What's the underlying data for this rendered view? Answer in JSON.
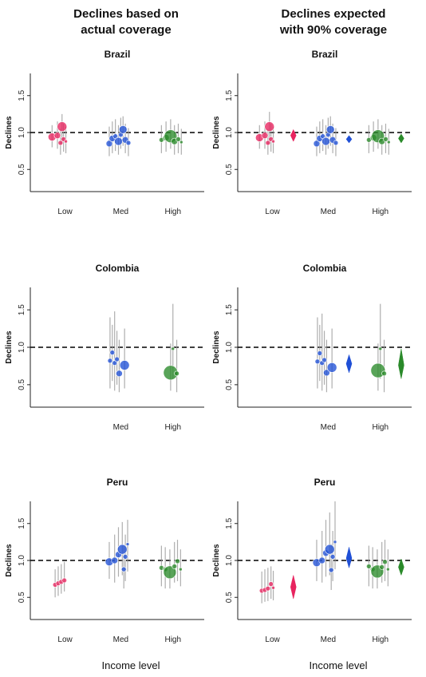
{
  "column_titles": {
    "left": [
      "Declines based on",
      "actual coverage"
    ],
    "right": [
      "Declines expected",
      "with 90% coverage"
    ]
  },
  "x_axis_title": "Income level",
  "colors": {
    "Low": "#e8245f",
    "Med": "#1f4fd6",
    "High": "#2a8a2a",
    "ci": "#9a9a9a",
    "ref_line": "#000000"
  },
  "chart_data": [
    {
      "type": "scatter",
      "title": "Brazil",
      "column": "actual",
      "ylabel": "Declines",
      "ylim": [
        0.2,
        1.8
      ],
      "yticks": [
        0.5,
        1.0,
        1.5
      ],
      "reference_line": 1.0,
      "categories": [
        "Low",
        "Med",
        "High"
      ],
      "tick_labels": [
        "Low",
        "Med",
        "High"
      ],
      "series": [
        {
          "group": "Low",
          "points": [
            {
              "o": -0.34,
              "v": 0.94,
              "r": 5,
              "lo": 0.8,
              "hi": 1.1
            },
            {
              "o": -0.2,
              "v": 0.96,
              "r": 4,
              "lo": 0.78,
              "hi": 1.15
            },
            {
              "o": -0.08,
              "v": 1.08,
              "r": 6,
              "lo": 0.85,
              "hi": 1.25
            },
            {
              "o": -0.12,
              "v": 0.86,
              "r": 3,
              "lo": 0.7,
              "hi": 1.05
            },
            {
              "o": -0.04,
              "v": 0.91,
              "r": 3,
              "lo": 0.74,
              "hi": 1.12
            },
            {
              "o": 0.02,
              "v": 0.88,
              "r": 2,
              "lo": 0.72,
              "hi": 1.08
            }
          ]
        },
        {
          "group": "Med",
          "points": [
            {
              "o": -0.3,
              "v": 0.85,
              "r": 4,
              "lo": 0.68,
              "hi": 1.08
            },
            {
              "o": -0.22,
              "v": 0.92,
              "r": 4,
              "lo": 0.72,
              "hi": 1.15
            },
            {
              "o": -0.14,
              "v": 0.95,
              "r": 3,
              "lo": 0.75,
              "hi": 1.18
            },
            {
              "o": -0.06,
              "v": 0.88,
              "r": 5,
              "lo": 0.7,
              "hi": 1.1
            },
            {
              "o": 0.0,
              "v": 0.97,
              "r": 3,
              "lo": 0.78,
              "hi": 1.2
            },
            {
              "o": 0.06,
              "v": 1.04,
              "r": 5,
              "lo": 0.82,
              "hi": 1.22
            },
            {
              "o": 0.12,
              "v": 0.9,
              "r": 4,
              "lo": 0.72,
              "hi": 1.12
            },
            {
              "o": 0.2,
              "v": 0.86,
              "r": 3,
              "lo": 0.68,
              "hi": 1.06
            }
          ]
        },
        {
          "group": "High",
          "points": [
            {
              "o": -0.3,
              "v": 0.9,
              "r": 3,
              "lo": 0.72,
              "hi": 1.1
            },
            {
              "o": -0.18,
              "v": 0.93,
              "r": 4,
              "lo": 0.74,
              "hi": 1.15
            },
            {
              "o": -0.06,
              "v": 0.95,
              "r": 8,
              "lo": 0.78,
              "hi": 1.18
            },
            {
              "o": 0.04,
              "v": 0.88,
              "r": 4,
              "lo": 0.7,
              "hi": 1.1
            },
            {
              "o": 0.14,
              "v": 0.91,
              "r": 3,
              "lo": 0.72,
              "hi": 1.12
            },
            {
              "o": 0.22,
              "v": 0.87,
              "r": 2,
              "lo": 0.7,
              "hi": 1.05
            }
          ]
        }
      ],
      "diamonds": []
    },
    {
      "type": "scatter",
      "title": "Brazil",
      "column": "expected",
      "ylabel": "Declines",
      "ylim": [
        0.2,
        1.8
      ],
      "yticks": [
        0.5,
        1.0,
        1.5
      ],
      "reference_line": 1.0,
      "categories": [
        "Low",
        "Med",
        "High"
      ],
      "tick_labels": [
        "Low",
        "Med",
        "High"
      ],
      "series": [
        {
          "group": "Low",
          "points": [
            {
              "o": -0.34,
              "v": 0.93,
              "r": 5,
              "lo": 0.78,
              "hi": 1.1
            },
            {
              "o": -0.2,
              "v": 0.96,
              "r": 4,
              "lo": 0.78,
              "hi": 1.15
            },
            {
              "o": -0.08,
              "v": 1.08,
              "r": 6,
              "lo": 0.85,
              "hi": 1.28
            },
            {
              "o": -0.12,
              "v": 0.86,
              "r": 3,
              "lo": 0.7,
              "hi": 1.05
            },
            {
              "o": -0.04,
              "v": 0.91,
              "r": 3,
              "lo": 0.74,
              "hi": 1.12
            },
            {
              "o": 0.02,
              "v": 0.88,
              "r": 2,
              "lo": 0.72,
              "hi": 1.08
            }
          ]
        },
        {
          "group": "Med",
          "points": [
            {
              "o": -0.3,
              "v": 0.85,
              "r": 4,
              "lo": 0.68,
              "hi": 1.08
            },
            {
              "o": -0.22,
              "v": 0.92,
              "r": 4,
              "lo": 0.72,
              "hi": 1.15
            },
            {
              "o": -0.14,
              "v": 0.95,
              "r": 3,
              "lo": 0.75,
              "hi": 1.18
            },
            {
              "o": -0.06,
              "v": 0.88,
              "r": 5,
              "lo": 0.7,
              "hi": 1.1
            },
            {
              "o": 0.0,
              "v": 0.97,
              "r": 3,
              "lo": 0.78,
              "hi": 1.2
            },
            {
              "o": 0.06,
              "v": 1.04,
              "r": 5,
              "lo": 0.82,
              "hi": 1.22
            },
            {
              "o": 0.12,
              "v": 0.9,
              "r": 4,
              "lo": 0.72,
              "hi": 1.12
            },
            {
              "o": 0.2,
              "v": 0.86,
              "r": 3,
              "lo": 0.68,
              "hi": 1.06
            }
          ]
        },
        {
          "group": "High",
          "points": [
            {
              "o": -0.3,
              "v": 0.9,
              "r": 3,
              "lo": 0.72,
              "hi": 1.1
            },
            {
              "o": -0.18,
              "v": 0.93,
              "r": 4,
              "lo": 0.74,
              "hi": 1.15
            },
            {
              "o": -0.06,
              "v": 0.95,
              "r": 8,
              "lo": 0.78,
              "hi": 1.18
            },
            {
              "o": 0.04,
              "v": 0.88,
              "r": 4,
              "lo": 0.7,
              "hi": 1.1
            },
            {
              "o": 0.14,
              "v": 0.91,
              "r": 3,
              "lo": 0.72,
              "hi": 1.12
            },
            {
              "o": 0.22,
              "v": 0.87,
              "r": 2,
              "lo": 0.7,
              "hi": 1.05
            }
          ]
        }
      ],
      "diamonds": [
        {
          "group": "Low",
          "v": 0.96,
          "lo": 0.88,
          "hi": 1.04
        },
        {
          "group": "Med",
          "v": 0.91,
          "lo": 0.86,
          "hi": 0.96
        },
        {
          "group": "High",
          "v": 0.92,
          "lo": 0.86,
          "hi": 0.98
        }
      ]
    },
    {
      "type": "scatter",
      "title": "Colombia",
      "column": "actual",
      "ylabel": "Declines",
      "ylim": [
        0.2,
        1.8
      ],
      "yticks": [
        0.5,
        1.0,
        1.5
      ],
      "reference_line": 1.0,
      "categories": [
        "Low",
        "Med",
        "High"
      ],
      "tick_labels": [
        "",
        "Med",
        "High"
      ],
      "series": [
        {
          "group": "Med",
          "points": [
            {
              "o": -0.28,
              "v": 0.82,
              "r": 3,
              "lo": 0.45,
              "hi": 1.4
            },
            {
              "o": -0.22,
              "v": 0.93,
              "r": 3,
              "lo": 0.55,
              "hi": 1.3
            },
            {
              "o": -0.16,
              "v": 0.79,
              "r": 3,
              "lo": 0.42,
              "hi": 1.48
            },
            {
              "o": -0.1,
              "v": 0.84,
              "r": 3,
              "lo": 0.5,
              "hi": 1.22
            },
            {
              "o": -0.04,
              "v": 0.65,
              "r": 4,
              "lo": 0.4,
              "hi": 1.1
            },
            {
              "o": 0.1,
              "v": 0.76,
              "r": 6,
              "lo": 0.45,
              "hi": 1.25
            }
          ]
        },
        {
          "group": "High",
          "points": [
            {
              "o": -0.06,
              "v": 0.66,
              "r": 9,
              "lo": 0.42,
              "hi": 1.05
            },
            {
              "o": 0.0,
              "v": 0.98,
              "r": 2,
              "lo": 0.58,
              "hi": 1.58
            },
            {
              "o": 0.1,
              "v": 0.65,
              "r": 3,
              "lo": 0.4,
              "hi": 1.1
            }
          ]
        }
      ],
      "diamonds": []
    },
    {
      "type": "scatter",
      "title": "Colombia",
      "column": "expected",
      "ylabel": "Declines",
      "ylim": [
        0.2,
        1.8
      ],
      "yticks": [
        0.5,
        1.0,
        1.5
      ],
      "reference_line": 1.0,
      "categories": [
        "Low",
        "Med",
        "High"
      ],
      "tick_labels": [
        "",
        "Med",
        "High"
      ],
      "series": [
        {
          "group": "Med",
          "points": [
            {
              "o": -0.28,
              "v": 0.81,
              "r": 3,
              "lo": 0.45,
              "hi": 1.4
            },
            {
              "o": -0.22,
              "v": 0.92,
              "r": 3,
              "lo": 0.55,
              "hi": 1.3
            },
            {
              "o": -0.16,
              "v": 0.79,
              "r": 3,
              "lo": 0.42,
              "hi": 1.45
            },
            {
              "o": -0.1,
              "v": 0.83,
              "r": 3,
              "lo": 0.5,
              "hi": 1.22
            },
            {
              "o": -0.04,
              "v": 0.66,
              "r": 4,
              "lo": 0.4,
              "hi": 1.1
            },
            {
              "o": 0.1,
              "v": 0.73,
              "r": 6,
              "lo": 0.45,
              "hi": 1.25
            }
          ]
        },
        {
          "group": "High",
          "points": [
            {
              "o": -0.06,
              "v": 0.69,
              "r": 9,
              "lo": 0.42,
              "hi": 1.05
            },
            {
              "o": 0.0,
              "v": 0.98,
              "r": 2,
              "lo": 0.58,
              "hi": 1.58
            },
            {
              "o": 0.1,
              "v": 0.65,
              "r": 3,
              "lo": 0.4,
              "hi": 1.1
            }
          ]
        }
      ],
      "diamonds": [
        {
          "group": "Med",
          "v": 0.78,
          "lo": 0.66,
          "hi": 0.9
        },
        {
          "group": "High",
          "v": 0.76,
          "lo": 0.58,
          "hi": 0.98
        }
      ]
    },
    {
      "type": "scatter",
      "title": "Peru",
      "column": "actual",
      "ylabel": "Declines",
      "ylim": [
        0.2,
        1.8
      ],
      "yticks": [
        0.5,
        1.0,
        1.5
      ],
      "reference_line": 1.0,
      "categories": [
        "Low",
        "Med",
        "High"
      ],
      "tick_labels": [
        "Low",
        "Med",
        "High"
      ],
      "series": [
        {
          "group": "Low",
          "points": [
            {
              "o": -0.26,
              "v": 0.67,
              "r": 3,
              "lo": 0.5,
              "hi": 0.88
            },
            {
              "o": -0.18,
              "v": 0.69,
              "r": 3,
              "lo": 0.52,
              "hi": 0.92
            },
            {
              "o": -0.1,
              "v": 0.71,
              "r": 3,
              "lo": 0.55,
              "hi": 0.95
            },
            {
              "o": -0.02,
              "v": 0.73,
              "r": 3,
              "lo": 0.58,
              "hi": 0.98
            }
          ]
        },
        {
          "group": "Med",
          "points": [
            {
              "o": -0.3,
              "v": 0.98,
              "r": 5,
              "lo": 0.75,
              "hi": 1.25
            },
            {
              "o": -0.16,
              "v": 1.0,
              "r": 4,
              "lo": 0.7,
              "hi": 1.35
            },
            {
              "o": -0.06,
              "v": 1.08,
              "r": 4,
              "lo": 0.78,
              "hi": 1.45
            },
            {
              "o": 0.04,
              "v": 1.15,
              "r": 6,
              "lo": 0.8,
              "hi": 1.52
            },
            {
              "o": 0.08,
              "v": 0.88,
              "r": 3,
              "lo": 0.62,
              "hi": 1.2
            },
            {
              "o": 0.18,
              "v": 1.22,
              "r": 2,
              "lo": 0.85,
              "hi": 1.55
            },
            {
              "o": 0.12,
              "v": 1.05,
              "r": 3,
              "lo": 0.72,
              "hi": 1.35
            }
          ]
        },
        {
          "group": "High",
          "points": [
            {
              "o": -0.3,
              "v": 0.9,
              "r": 3,
              "lo": 0.65,
              "hi": 1.2
            },
            {
              "o": -0.2,
              "v": 0.88,
              "r": 3,
              "lo": 0.62,
              "hi": 1.18
            },
            {
              "o": -0.08,
              "v": 0.84,
              "r": 8,
              "lo": 0.62,
              "hi": 1.15
            },
            {
              "o": 0.04,
              "v": 0.92,
              "r": 3,
              "lo": 0.7,
              "hi": 1.25
            },
            {
              "o": 0.12,
              "v": 0.99,
              "r": 3,
              "lo": 0.72,
              "hi": 1.28
            },
            {
              "o": 0.2,
              "v": 0.88,
              "r": 2,
              "lo": 0.65,
              "hi": 1.15
            }
          ]
        }
      ],
      "diamonds": []
    },
    {
      "type": "scatter",
      "title": "Peru",
      "column": "expected",
      "ylabel": "Declines",
      "ylim": [
        0.2,
        1.8
      ],
      "yticks": [
        0.5,
        1.0,
        1.5
      ],
      "reference_line": 1.0,
      "categories": [
        "Low",
        "Med",
        "High"
      ],
      "tick_labels": [
        "Low",
        "Med",
        "High"
      ],
      "series": [
        {
          "group": "Low",
          "points": [
            {
              "o": -0.28,
              "v": 0.59,
              "r": 3,
              "lo": 0.42,
              "hi": 0.85
            },
            {
              "o": -0.2,
              "v": 0.6,
              "r": 3,
              "lo": 0.44,
              "hi": 0.88
            },
            {
              "o": -0.12,
              "v": 0.62,
              "r": 3,
              "lo": 0.45,
              "hi": 0.9
            },
            {
              "o": -0.04,
              "v": 0.68,
              "r": 3,
              "lo": 0.48,
              "hi": 0.92
            },
            {
              "o": 0.02,
              "v": 0.63,
              "r": 2,
              "lo": 0.46,
              "hi": 0.86
            }
          ]
        },
        {
          "group": "Med",
          "points": [
            {
              "o": -0.3,
              "v": 0.97,
              "r": 5,
              "lo": 0.72,
              "hi": 1.28
            },
            {
              "o": -0.16,
              "v": 1.0,
              "r": 4,
              "lo": 0.7,
              "hi": 1.4
            },
            {
              "o": -0.06,
              "v": 1.1,
              "r": 4,
              "lo": 0.78,
              "hi": 1.55
            },
            {
              "o": 0.04,
              "v": 1.15,
              "r": 6,
              "lo": 0.8,
              "hi": 1.65
            },
            {
              "o": 0.08,
              "v": 0.87,
              "r": 3,
              "lo": 0.6,
              "hi": 1.22
            },
            {
              "o": 0.18,
              "v": 1.25,
              "r": 2,
              "lo": 0.88,
              "hi": 1.8
            },
            {
              "o": 0.12,
              "v": 1.05,
              "r": 3,
              "lo": 0.72,
              "hi": 1.4
            }
          ]
        },
        {
          "group": "High",
          "points": [
            {
              "o": -0.3,
              "v": 0.92,
              "r": 3,
              "lo": 0.65,
              "hi": 1.2
            },
            {
              "o": -0.2,
              "v": 0.88,
              "r": 3,
              "lo": 0.62,
              "hi": 1.18
            },
            {
              "o": -0.08,
              "v": 0.85,
              "r": 8,
              "lo": 0.62,
              "hi": 1.15
            },
            {
              "o": 0.04,
              "v": 0.91,
              "r": 3,
              "lo": 0.7,
              "hi": 1.25
            },
            {
              "o": 0.12,
              "v": 0.98,
              "r": 3,
              "lo": 0.72,
              "hi": 1.28
            },
            {
              "o": 0.2,
              "v": 0.88,
              "r": 2,
              "lo": 0.65,
              "hi": 1.15
            }
          ]
        }
      ],
      "diamonds": [
        {
          "group": "Low",
          "v": 0.64,
          "lo": 0.48,
          "hi": 0.8
        },
        {
          "group": "Med",
          "v": 1.03,
          "lo": 0.9,
          "hi": 1.18
        },
        {
          "group": "High",
          "v": 0.91,
          "lo": 0.8,
          "hi": 1.02
        }
      ]
    }
  ]
}
